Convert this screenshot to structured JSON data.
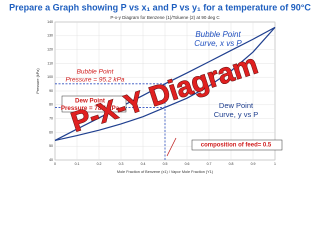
{
  "heading": "Prepare a Graph showing P vs x₁ and P vs y₁ for a temperature of 90°C",
  "chart_data": {
    "type": "line",
    "title": "P-x-y Diagram for Benzene (1)/Toluene (2) at 90 deg C",
    "x_label": "Mole Fraction of Benzene (x1) / Vapor Mole Fraction (Y1)",
    "y_label": "Pressure (kPa)",
    "x": [
      0,
      0.1,
      0.2,
      0.3,
      0.4,
      0.5,
      0.6,
      0.7,
      0.8,
      0.9,
      1
    ],
    "series": [
      {
        "name": "Bubble Point Curve",
        "color": "#1f3f8f",
        "values": [
          54.2,
          62.4,
          70.5,
          78.7,
          86.8,
          95.2,
          103.1,
          111.2,
          119.4,
          127.5,
          136.1
        ]
      },
      {
        "name": "Dew Point Curve",
        "color": "#1f3f8f",
        "values": [
          54.2,
          57.7,
          61.6,
          66.1,
          71.4,
          78.1,
          84.8,
          93.6,
          104.5,
          118.2,
          136.1
        ]
      }
    ],
    "xlim": [
      0,
      1
    ],
    "ylim": [
      40,
      140
    ],
    "xticks": [
      0,
      0.1,
      0.2,
      0.3,
      0.4,
      0.5,
      0.6,
      0.7,
      0.8,
      0.9,
      1
    ],
    "yticks": [
      40,
      50,
      60,
      70,
      80,
      90,
      100,
      110,
      120,
      130,
      140
    ],
    "grid": true,
    "annotations": [
      {
        "lines": [
          "Bubble Point",
          "Curve, x vs P"
        ]
      },
      {
        "lines": [
          "Bubble Point",
          "Pressure = 95.2 kPa"
        ]
      },
      {
        "lines": [
          "Dew Point",
          "Pressure = 78.1 kPa"
        ]
      },
      {
        "lines": [
          "Dew Point",
          "Curve, y vs P"
        ]
      },
      {
        "lines": [
          "composition of feed= 0.5"
        ]
      },
      {
        "lines": [
          "P-X-Y Diagram"
        ]
      }
    ]
  }
}
